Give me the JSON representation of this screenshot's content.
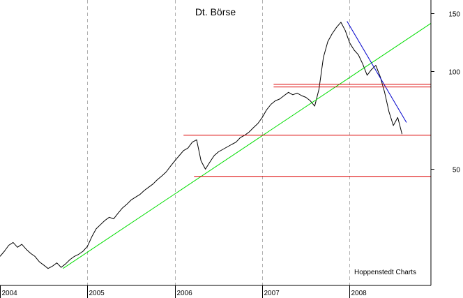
{
  "chart_data": {
    "type": "line",
    "title": "Dt. Börse",
    "credit": "Hoppenstedt Charts",
    "y_scale": "log",
    "ylim": [
      22,
      165
    ],
    "xlim": [
      2004.0,
      2008.93
    ],
    "y_ticks": [
      50,
      100,
      150
    ],
    "x_ticks": [
      {
        "label": "2004",
        "x": 2004.0
      },
      {
        "label": "2005",
        "x": 2005.0
      },
      {
        "label": "2006",
        "x": 2006.0
      },
      {
        "label": "2007",
        "x": 2007.0
      },
      {
        "label": "2008",
        "x": 2008.0
      }
    ],
    "grid": {
      "vertical": true,
      "horizontal": false
    },
    "series": [
      {
        "color": "#000000",
        "x": [
          2004.0,
          2004.05,
          2004.1,
          2004.15,
          2004.2,
          2004.25,
          2004.3,
          2004.35,
          2004.4,
          2004.45,
          2004.5,
          2004.55,
          2004.6,
          2004.65,
          2004.7,
          2004.75,
          2004.8,
          2004.85,
          2004.9,
          2004.95,
          2005.0,
          2005.05,
          2005.1,
          2005.15,
          2005.2,
          2005.25,
          2005.3,
          2005.35,
          2005.4,
          2005.45,
          2005.5,
          2005.55,
          2005.6,
          2005.65,
          2005.7,
          2005.75,
          2005.8,
          2005.85,
          2005.9,
          2005.95,
          2006.0,
          2006.05,
          2006.1,
          2006.15,
          2006.2,
          2006.25,
          2006.3,
          2006.35,
          2006.4,
          2006.45,
          2006.5,
          2006.55,
          2006.6,
          2006.65,
          2006.7,
          2006.75,
          2006.8,
          2006.85,
          2006.9,
          2006.95,
          2007.0,
          2007.05,
          2007.1,
          2007.15,
          2007.2,
          2007.25,
          2007.3,
          2007.35,
          2007.4,
          2007.45,
          2007.5,
          2007.55,
          2007.6,
          2007.65,
          2007.7,
          2007.75,
          2007.8,
          2007.85,
          2007.9,
          2007.95,
          2008.0,
          2008.05,
          2008.1,
          2008.15,
          2008.2,
          2008.25,
          2008.3,
          2008.35,
          2008.4,
          2008.45,
          2008.5,
          2008.55,
          2008.6
        ],
        "y": [
          27.0,
          28.0,
          29.2,
          29.8,
          28.8,
          29.4,
          28.4,
          27.6,
          27.0,
          26.0,
          25.4,
          24.8,
          25.2,
          25.8,
          25.0,
          25.6,
          26.4,
          27.0,
          27.4,
          28.0,
          29.0,
          31.0,
          32.8,
          33.8,
          34.8,
          35.6,
          35.2,
          36.6,
          38.0,
          39.0,
          40.2,
          41.0,
          41.8,
          43.0,
          44.0,
          45.0,
          46.4,
          47.6,
          49.0,
          51.0,
          53.0,
          55.0,
          57.0,
          58.0,
          60.5,
          61.5,
          53.0,
          50.0,
          52.5,
          55.0,
          56.5,
          57.5,
          58.5,
          59.5,
          60.5,
          62.5,
          63.5,
          65.0,
          67.0,
          69.0,
          72.0,
          76.0,
          79.0,
          81.0,
          82.0,
          84.0,
          86.0,
          84.5,
          85.5,
          84.0,
          83.0,
          81.0,
          78.0,
          88.0,
          110.0,
          123.0,
          130.0,
          136.0,
          141.0,
          133.0,
          122.0,
          116.0,
          112.0,
          105.0,
          97.0,
          101.0,
          104.0,
          96.0,
          86.0,
          75.0,
          68.0,
          72.0,
          64.0
        ]
      },
      {
        "color": "#00dd00",
        "x": [
          2004.72,
          2008.93
        ],
        "y": [
          24.8,
          140.0
        ]
      },
      {
        "color": "#0000cc",
        "x": [
          2007.97,
          2008.65
        ],
        "y": [
          142.0,
          69.5
        ]
      },
      {
        "color": "#dd0000",
        "x": [
          2007.13,
          2008.93
        ],
        "y": [
          91.0,
          91.0
        ]
      },
      {
        "color": "#dd0000",
        "x": [
          2007.13,
          2008.93
        ],
        "y": [
          89.3,
          89.3
        ]
      },
      {
        "color": "#dd0000",
        "x": [
          2006.1,
          2008.93
        ],
        "y": [
          63.5,
          63.5
        ]
      },
      {
        "color": "#dd0000",
        "x": [
          2006.22,
          2008.93
        ],
        "y": [
          47.5,
          47.5
        ]
      }
    ]
  }
}
